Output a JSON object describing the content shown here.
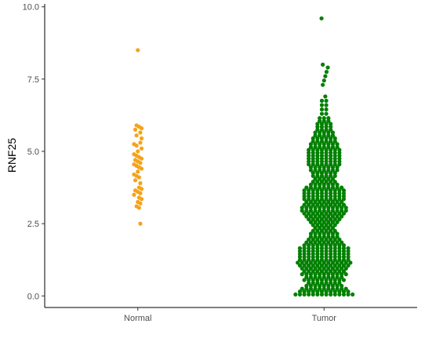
{
  "chart_data": {
    "type": "scatter",
    "subtype": "beeswarm",
    "title": "",
    "xlabel": "",
    "ylabel": "RNF25",
    "categories": [
      "Normal",
      "Tumor"
    ],
    "ylim": [
      -0.4,
      10.1
    ],
    "yticks": [
      "0.0",
      "2.5",
      "5.0",
      "7.5",
      "10.0"
    ],
    "grid": false,
    "legend": "none",
    "series": [
      {
        "category": "Normal",
        "color": "#f5a31a",
        "values": [
          2.5,
          3.05,
          3.1,
          3.2,
          3.25,
          3.35,
          3.4,
          3.5,
          3.55,
          3.6,
          3.65,
          3.7,
          3.75,
          3.9,
          4.0,
          4.1,
          4.15,
          4.2,
          4.3,
          4.4,
          4.45,
          4.5,
          4.55,
          4.6,
          4.65,
          4.7,
          4.75,
          4.8,
          4.85,
          4.9,
          5.0,
          5.1,
          5.2,
          5.25,
          5.3,
          5.45,
          5.55,
          5.65,
          5.75,
          5.8,
          5.85,
          5.9,
          8.5
        ]
      },
      {
        "category": "Tumor",
        "color": "#008000",
        "values": [
          0.05,
          0.05,
          0.05,
          0.05,
          0.05,
          0.05,
          0.05,
          0.05,
          0.05,
          0.05,
          0.05,
          0.05,
          0.05,
          0.05,
          0.15,
          0.15,
          0.15,
          0.15,
          0.15,
          0.15,
          0.15,
          0.15,
          0.15,
          0.15,
          0.15,
          0.15,
          0.25,
          0.25,
          0.25,
          0.25,
          0.25,
          0.25,
          0.25,
          0.25,
          0.25,
          0.25,
          0.25,
          0.35,
          0.35,
          0.35,
          0.35,
          0.35,
          0.35,
          0.35,
          0.35,
          0.35,
          0.45,
          0.45,
          0.45,
          0.45,
          0.45,
          0.45,
          0.45,
          0.45,
          0.55,
          0.55,
          0.55,
          0.55,
          0.55,
          0.55,
          0.55,
          0.55,
          0.55,
          0.55,
          0.65,
          0.65,
          0.65,
          0.65,
          0.65,
          0.65,
          0.65,
          0.65,
          0.65,
          0.75,
          0.75,
          0.75,
          0.75,
          0.75,
          0.75,
          0.75,
          0.75,
          0.75,
          0.75,
          0.75,
          0.85,
          0.85,
          0.85,
          0.85,
          0.85,
          0.85,
          0.85,
          0.85,
          0.85,
          0.85,
          0.95,
          0.95,
          0.95,
          0.95,
          0.95,
          0.95,
          0.95,
          0.95,
          0.95,
          0.95,
          0.95,
          1.05,
          1.05,
          1.05,
          1.05,
          1.05,
          1.05,
          1.05,
          1.05,
          1.05,
          1.05,
          1.05,
          1.05,
          1.15,
          1.15,
          1.15,
          1.15,
          1.15,
          1.15,
          1.15,
          1.15,
          1.15,
          1.15,
          1.15,
          1.15,
          1.15,
          1.25,
          1.25,
          1.25,
          1.25,
          1.25,
          1.25,
          1.25,
          1.25,
          1.25,
          1.25,
          1.25,
          1.25,
          1.35,
          1.35,
          1.35,
          1.35,
          1.35,
          1.35,
          1.35,
          1.35,
          1.35,
          1.35,
          1.35,
          1.35,
          1.45,
          1.45,
          1.45,
          1.45,
          1.45,
          1.45,
          1.45,
          1.45,
          1.45,
          1.45,
          1.45,
          1.45,
          1.55,
          1.55,
          1.55,
          1.55,
          1.55,
          1.55,
          1.55,
          1.55,
          1.55,
          1.55,
          1.55,
          1.55,
          1.65,
          1.65,
          1.65,
          1.65,
          1.65,
          1.65,
          1.65,
          1.65,
          1.65,
          1.65,
          1.65,
          1.65,
          1.75,
          1.75,
          1.75,
          1.75,
          1.75,
          1.75,
          1.75,
          1.75,
          1.75,
          1.75,
          1.85,
          1.85,
          1.85,
          1.85,
          1.85,
          1.85,
          1.85,
          1.85,
          1.85,
          1.95,
          1.95,
          1.95,
          1.95,
          1.95,
          1.95,
          1.95,
          1.95,
          2.05,
          2.05,
          2.05,
          2.05,
          2.05,
          2.05,
          2.05,
          2.15,
          2.15,
          2.15,
          2.15,
          2.15,
          2.15,
          2.15,
          2.25,
          2.25,
          2.25,
          2.25,
          2.25,
          2.25,
          2.35,
          2.35,
          2.35,
          2.35,
          2.35,
          2.45,
          2.45,
          2.45,
          2.45,
          2.45,
          2.45,
          2.55,
          2.55,
          2.55,
          2.55,
          2.55,
          2.55,
          2.55,
          2.65,
          2.65,
          2.65,
          2.65,
          2.65,
          2.65,
          2.65,
          2.65,
          2.75,
          2.75,
          2.75,
          2.75,
          2.75,
          2.75,
          2.75,
          2.75,
          2.75,
          2.85,
          2.85,
          2.85,
          2.85,
          2.85,
          2.85,
          2.85,
          2.85,
          2.85,
          2.85,
          2.95,
          2.95,
          2.95,
          2.95,
          2.95,
          2.95,
          2.95,
          2.95,
          2.95,
          2.95,
          2.95,
          3.05,
          3.05,
          3.05,
          3.05,
          3.05,
          3.05,
          3.05,
          3.05,
          3.05,
          3.05,
          3.05,
          3.15,
          3.15,
          3.15,
          3.15,
          3.15,
          3.15,
          3.15,
          3.15,
          3.15,
          3.15,
          3.25,
          3.25,
          3.25,
          3.25,
          3.25,
          3.25,
          3.25,
          3.25,
          3.25,
          3.35,
          3.35,
          3.35,
          3.35,
          3.35,
          3.35,
          3.35,
          3.35,
          3.35,
          3.35,
          3.45,
          3.45,
          3.45,
          3.45,
          3.45,
          3.45,
          3.45,
          3.45,
          3.45,
          3.45,
          3.55,
          3.55,
          3.55,
          3.55,
          3.55,
          3.55,
          3.55,
          3.55,
          3.55,
          3.55,
          3.65,
          3.65,
          3.65,
          3.65,
          3.65,
          3.65,
          3.65,
          3.65,
          3.65,
          3.65,
          3.75,
          3.75,
          3.75,
          3.75,
          3.75,
          3.75,
          3.75,
          3.75,
          3.75,
          3.85,
          3.85,
          3.85,
          3.85,
          3.85,
          3.85,
          3.85,
          3.95,
          3.95,
          3.95,
          3.95,
          3.95,
          3.95,
          4.05,
          4.05,
          4.05,
          4.05,
          4.05,
          4.15,
          4.15,
          4.15,
          4.15,
          4.15,
          4.15,
          4.25,
          4.25,
          4.25,
          4.25,
          4.25,
          4.25,
          4.35,
          4.35,
          4.35,
          4.35,
          4.35,
          4.35,
          4.35,
          4.45,
          4.45,
          4.45,
          4.45,
          4.45,
          4.45,
          4.45,
          4.55,
          4.55,
          4.55,
          4.55,
          4.55,
          4.55,
          4.55,
          4.55,
          4.65,
          4.65,
          4.65,
          4.65,
          4.65,
          4.65,
          4.65,
          4.65,
          4.75,
          4.75,
          4.75,
          4.75,
          4.75,
          4.75,
          4.75,
          4.75,
          4.85,
          4.85,
          4.85,
          4.85,
          4.85,
          4.85,
          4.85,
          4.85,
          4.95,
          4.95,
          4.95,
          4.95,
          4.95,
          4.95,
          4.95,
          4.95,
          5.05,
          5.05,
          5.05,
          5.05,
          5.05,
          5.05,
          5.05,
          5.05,
          5.15,
          5.15,
          5.15,
          5.15,
          5.15,
          5.15,
          5.15,
          5.25,
          5.25,
          5.25,
          5.25,
          5.25,
          5.25,
          5.25,
          5.35,
          5.35,
          5.35,
          5.35,
          5.35,
          5.35,
          5.45,
          5.45,
          5.45,
          5.45,
          5.45,
          5.45,
          5.55,
          5.55,
          5.55,
          5.55,
          5.55,
          5.65,
          5.65,
          5.65,
          5.65,
          5.65,
          5.75,
          5.75,
          5.75,
          5.75,
          5.85,
          5.85,
          5.85,
          5.85,
          5.95,
          5.95,
          5.95,
          5.95,
          6.05,
          6.05,
          6.05,
          6.15,
          6.15,
          6.15,
          6.3,
          6.3,
          6.45,
          6.45,
          6.6,
          6.6,
          6.75,
          6.75,
          6.9,
          7.3,
          7.45,
          7.6,
          7.75,
          7.9,
          8.0,
          9.6
        ]
      }
    ]
  }
}
